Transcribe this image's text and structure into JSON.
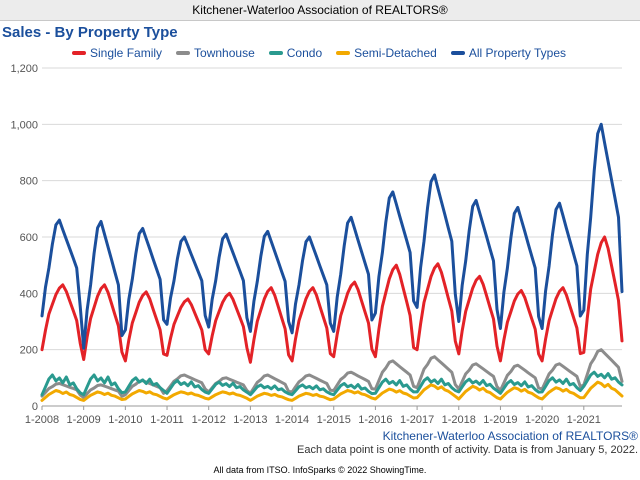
{
  "header": {
    "title": "Kitchener-Waterloo Association of REALTORS®"
  },
  "chart_title": "Sales - By Property Type",
  "footer": {
    "brand": "Kitchener-Waterloo Association of REALTORS®",
    "note": "Each data point is one month of activity. Data is from January 5, 2022.",
    "source": "All data from ITSO. InfoSparks © 2022 ShowingTime."
  },
  "chart_data": {
    "type": "line",
    "title": "Sales - By Property Type",
    "xlabel": "",
    "ylabel": "",
    "ylim": [
      0,
      1200
    ],
    "yticks": [
      0,
      200,
      400,
      600,
      800,
      1000,
      1200
    ],
    "ytick_labels": [
      "0",
      "200",
      "400",
      "600",
      "800",
      "1,000",
      "1,200"
    ],
    "x_start": "1-2008",
    "x_end": "12-2021",
    "xtick_labels": [
      "1-2008",
      "1-2009",
      "1-2010",
      "1-2011",
      "1-2012",
      "1-2013",
      "1-2014",
      "1-2015",
      "1-2016",
      "1-2017",
      "1-2018",
      "1-2019",
      "1-2020",
      "1-2021"
    ],
    "grid": true,
    "legend_position": "top",
    "series": [
      {
        "name": "Single Family",
        "color": "#e32227",
        "profile": [
          0.0,
          0.3,
          0.55,
          0.7,
          0.85,
          0.95,
          1.0,
          0.9,
          0.75,
          0.6,
          0.45,
          0.1
        ],
        "annual": [
          [
            200,
            430
          ],
          [
            165,
            430
          ],
          [
            160,
            405
          ],
          [
            180,
            380
          ],
          [
            185,
            400
          ],
          [
            155,
            420
          ],
          [
            160,
            420
          ],
          [
            175,
            440
          ],
          [
            175,
            500
          ],
          [
            200,
            505
          ],
          [
            185,
            460
          ],
          [
            160,
            410
          ],
          [
            160,
            420
          ],
          [
            190,
            600
          ]
        ]
      },
      {
        "name": "Townhouse",
        "color": "#8c8c8c",
        "profile": [
          0.0,
          0.3,
          0.6,
          0.75,
          0.95,
          1.0,
          0.9,
          0.8,
          0.7,
          0.6,
          0.5,
          0.1
        ],
        "annual": [
          [
            35,
            80
          ],
          [
            30,
            75
          ],
          [
            40,
            90
          ],
          [
            55,
            110
          ],
          [
            50,
            100
          ],
          [
            45,
            110
          ],
          [
            50,
            110
          ],
          [
            55,
            120
          ],
          [
            60,
            160
          ],
          [
            65,
            175
          ],
          [
            60,
            150
          ],
          [
            55,
            145
          ],
          [
            60,
            150
          ],
          [
            75,
            200
          ]
        ]
      },
      {
        "name": "Condo",
        "color": "#2a9a8f",
        "profile": [
          0.0,
          0.4,
          0.8,
          1.0,
          0.7,
          0.85,
          0.6,
          0.9,
          0.5,
          0.6,
          0.3,
          0.1
        ],
        "annual": [
          [
            40,
            110
          ],
          [
            40,
            110
          ],
          [
            50,
            100
          ],
          [
            45,
            90
          ],
          [
            45,
            85
          ],
          [
            40,
            75
          ],
          [
            40,
            75
          ],
          [
            40,
            80
          ],
          [
            45,
            95
          ],
          [
            50,
            100
          ],
          [
            50,
            95
          ],
          [
            45,
            90
          ],
          [
            50,
            100
          ],
          [
            70,
            120
          ]
        ]
      },
      {
        "name": "Semi-Detached",
        "color": "#f2a900",
        "profile": [
          0.0,
          0.3,
          0.6,
          0.8,
          1.0,
          0.9,
          0.7,
          0.85,
          0.6,
          0.5,
          0.3,
          0.1
        ],
        "annual": [
          [
            20,
            55
          ],
          [
            20,
            50
          ],
          [
            25,
            55
          ],
          [
            25,
            50
          ],
          [
            25,
            50
          ],
          [
            20,
            45
          ],
          [
            20,
            45
          ],
          [
            25,
            55
          ],
          [
            25,
            60
          ],
          [
            30,
            75
          ],
          [
            25,
            70
          ],
          [
            25,
            65
          ],
          [
            25,
            65
          ],
          [
            30,
            85
          ]
        ]
      },
      {
        "name": "All Property Types",
        "color": "#1b4f9c",
        "profile": [
          0.0,
          0.3,
          0.5,
          0.75,
          0.95,
          1.0,
          0.9,
          0.8,
          0.7,
          0.6,
          0.5,
          0.1
        ],
        "annual": [
          [
            320,
            660
          ],
          [
            205,
            655
          ],
          [
            270,
            630
          ],
          [
            290,
            600
          ],
          [
            280,
            610
          ],
          [
            265,
            620
          ],
          [
            260,
            600
          ],
          [
            265,
            670
          ],
          [
            330,
            760
          ],
          [
            350,
            820
          ],
          [
            300,
            730
          ],
          [
            275,
            705
          ],
          [
            275,
            720
          ],
          [
            340,
            1000
          ]
        ]
      }
    ]
  }
}
